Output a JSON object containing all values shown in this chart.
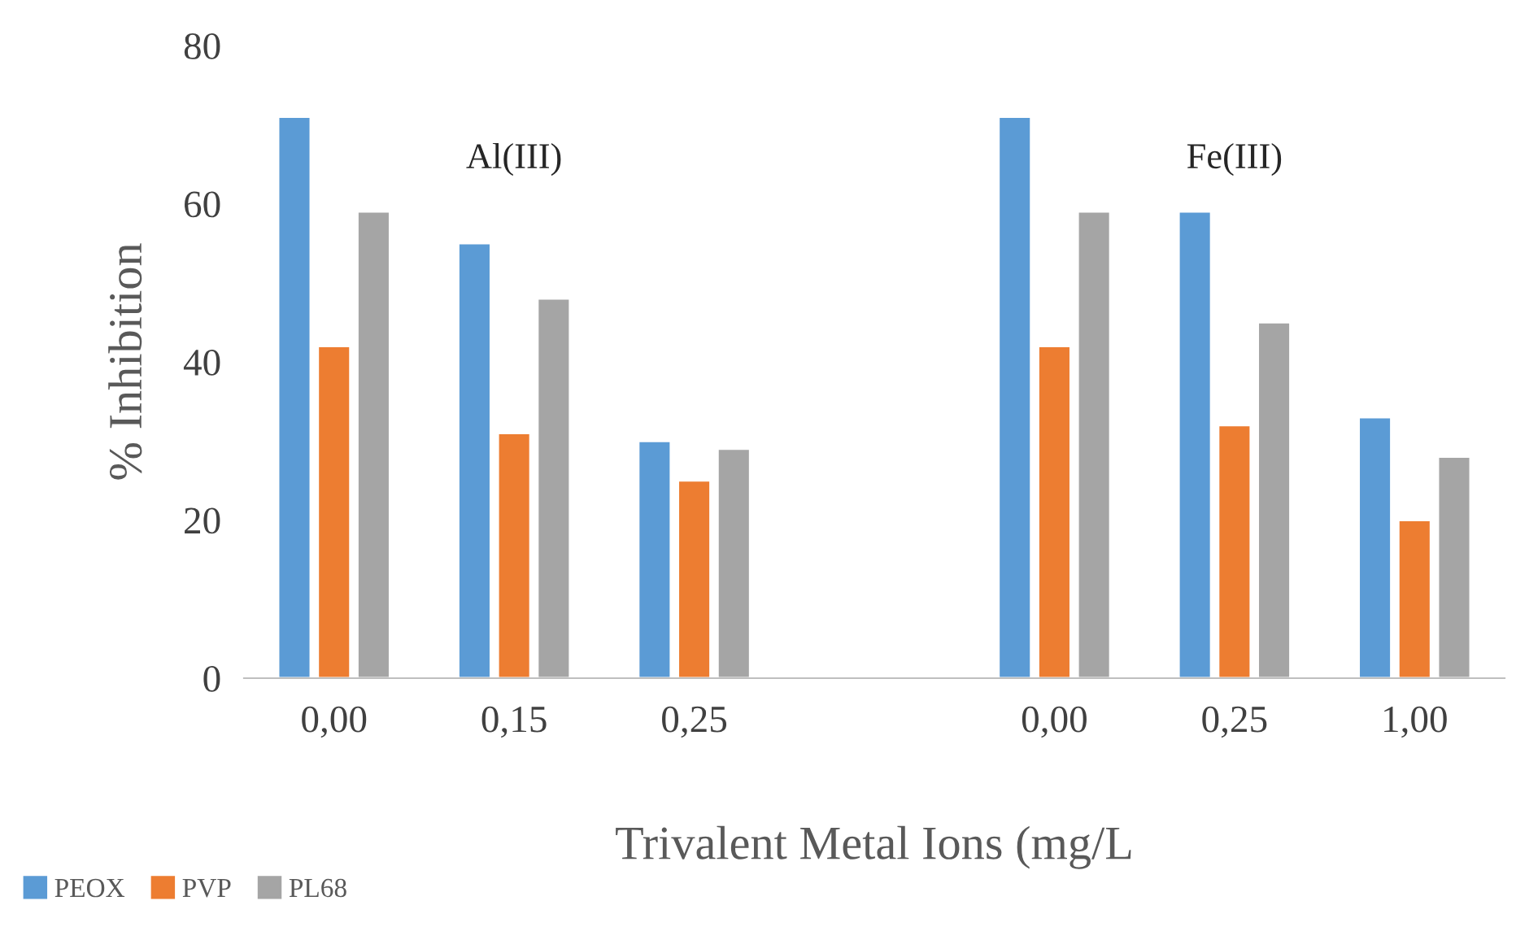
{
  "chart_data": {
    "type": "bar",
    "categories": [
      "0,00",
      "0,15",
      "0,25",
      null,
      "0,00",
      "0,25",
      "1,00"
    ],
    "series": [
      {
        "name": "PEOX",
        "color": "#5b9bd5",
        "values": [
          71,
          55,
          30,
          null,
          71,
          59,
          33
        ]
      },
      {
        "name": "PVP",
        "color": "#ed7d31",
        "values": [
          42,
          31,
          25,
          null,
          42,
          32,
          20
        ]
      },
      {
        "name": "PL68",
        "color": "#a5a5a5",
        "values": [
          59,
          48,
          29,
          null,
          59,
          45,
          28
        ]
      }
    ],
    "ylabel": "% Inhibition",
    "xlabel": "Trivalent Metal Ions (mg/L",
    "ylim": [
      0,
      80
    ],
    "yticks": [
      0,
      20,
      40,
      60,
      80
    ],
    "annotations": [
      "Al(III)",
      "Fe(III)"
    ],
    "grid": false,
    "legend": "bottom left"
  }
}
